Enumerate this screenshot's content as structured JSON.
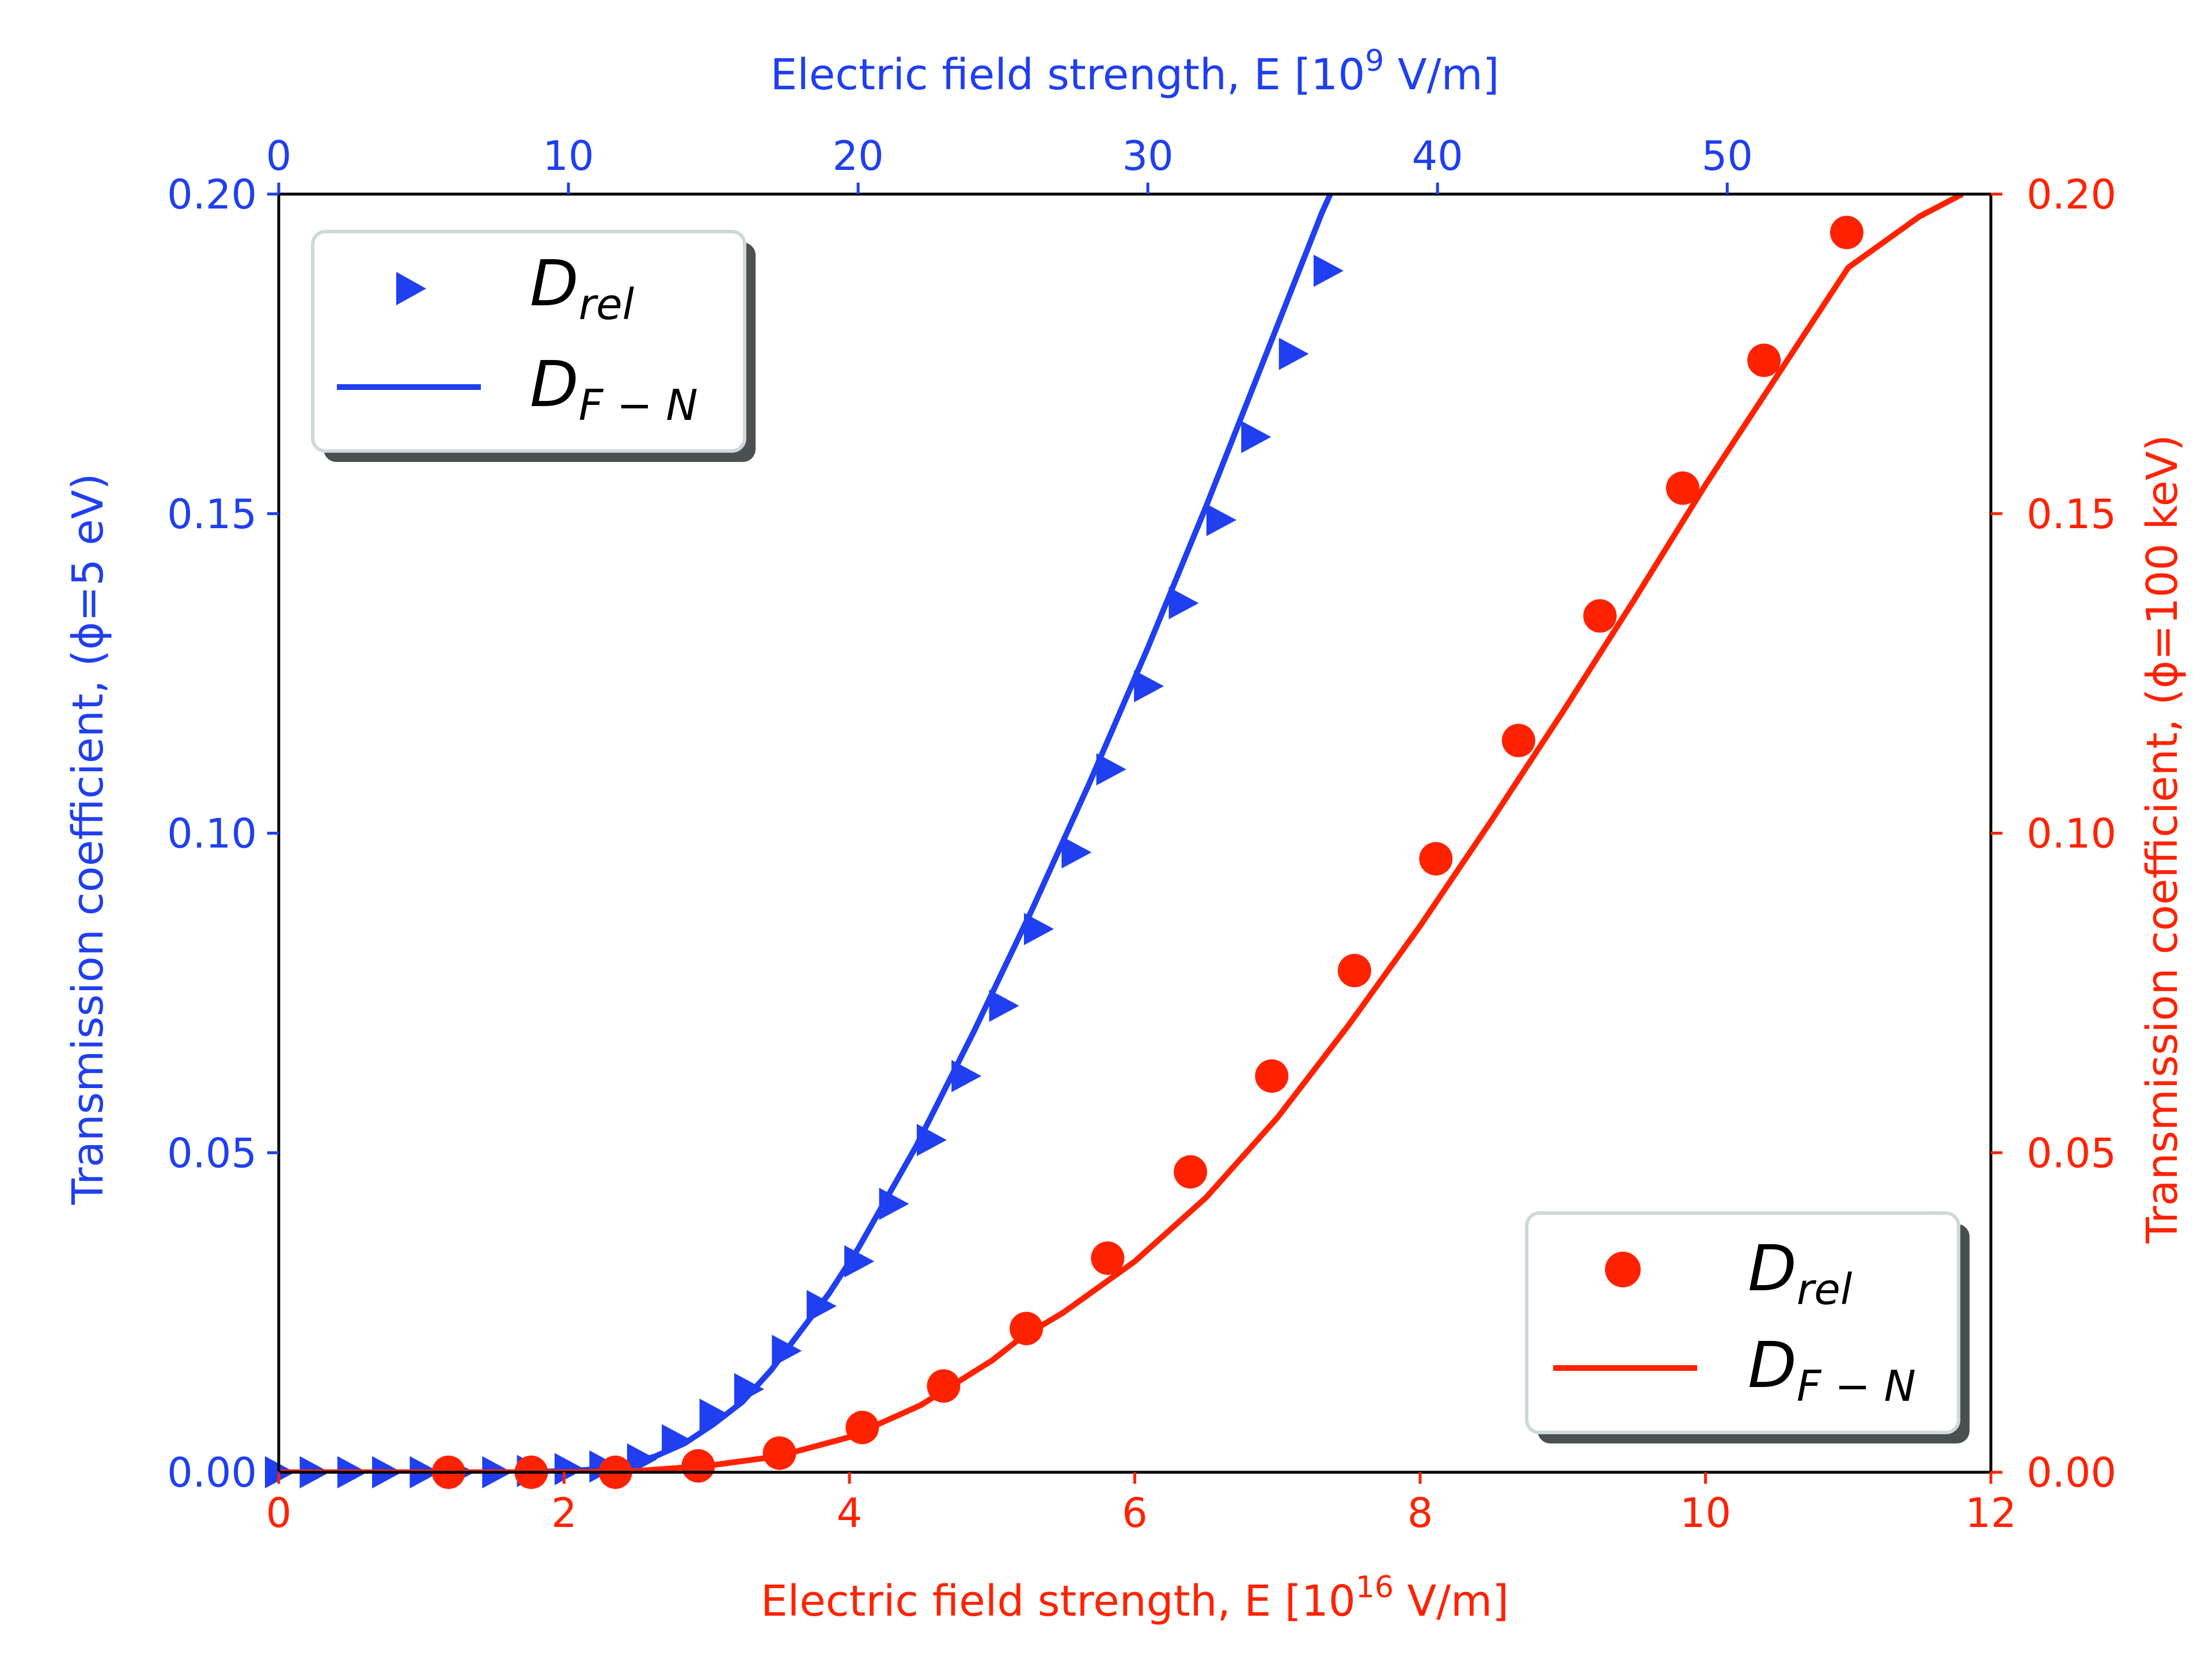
{
  "colors": {
    "blue": "#1f3ff0",
    "red": "#ff2200",
    "axis": "#000000",
    "legend_shadow": "#4a5050",
    "legend_border": "#cfd8d8"
  },
  "chart_data": {
    "type": "line",
    "x_bottom": {
      "label_prefix": "Electric field strength, E [10",
      "label_exp": "16",
      "label_suffix": " V/m]",
      "lim": [
        0,
        12
      ],
      "ticks": [
        "0",
        "2",
        "4",
        "6",
        "8",
        "10",
        "12"
      ]
    },
    "x_top": {
      "label_prefix": "Electric field strength, E [10",
      "label_exp": "9",
      "label_suffix": " V/m]",
      "lim": [
        0,
        59.1
      ],
      "ticks": [
        "0",
        "10",
        "20",
        "30",
        "40",
        "50"
      ]
    },
    "y_left": {
      "label": "Transmission coefficient, (ϕ=5 eV)",
      "lim": [
        0,
        0.2
      ],
      "ticks": [
        "0.00",
        "0.05",
        "0.10",
        "0.15",
        "0.20"
      ]
    },
    "y_right": {
      "label": "Transmission coefficient, (ϕ=100 keV)",
      "lim": [
        0,
        0.2
      ],
      "ticks": [
        "0.00",
        "0.05",
        "0.10",
        "0.15",
        "0.20"
      ]
    },
    "legend_left": {
      "position": "upper-left",
      "entries": [
        {
          "main": "D",
          "sub": "rel"
        },
        {
          "main": "D",
          "sub": "F − N"
        }
      ]
    },
    "legend_right": {
      "position": "lower-right",
      "entries": [
        {
          "main": "D",
          "sub": "rel"
        },
        {
          "main": "D",
          "sub": "F − N"
        }
      ]
    },
    "series": [
      {
        "axis": "top-left",
        "kind": "markers-triangle",
        "x": [
          0,
          1.2,
          2.5,
          3.7,
          5,
          6.2,
          7.5,
          8.7,
          10,
          11.2,
          12.5,
          13.7,
          15,
          16.2,
          17.5,
          18.7,
          20,
          21.2,
          22.5,
          23.7,
          25,
          26.2,
          27.5,
          28.7,
          30,
          31.2,
          32.5,
          33.7,
          35
        ],
        "y": [
          0,
          0,
          0,
          0,
          0,
          0,
          0,
          0.0002,
          0.0005,
          0.0009,
          0.002,
          0.005,
          0.009,
          0.013,
          0.019,
          0.026,
          0.033,
          0.042,
          0.052,
          0.062,
          0.073,
          0.085,
          0.097,
          0.11,
          0.123,
          0.136,
          0.149,
          0.162,
          0.175
        ]
      },
      {
        "axis": "top-left",
        "kind": "line",
        "x": [
          0,
          5,
          8,
          10,
          11,
          12,
          13,
          14,
          15,
          16,
          17,
          18,
          19,
          20,
          22,
          24,
          26,
          28,
          30,
          32,
          34,
          36,
          36.3
        ],
        "y": [
          0,
          0,
          0,
          0.0002,
          0.0005,
          0.0012,
          0.0025,
          0.0045,
          0.0075,
          0.011,
          0.016,
          0.022,
          0.028,
          0.035,
          0.051,
          0.069,
          0.088,
          0.108,
          0.129,
          0.151,
          0.174,
          0.197,
          0.2
        ]
      },
      {
        "axis": "top-left",
        "kind": "markers-triangle",
        "x": [
          36.2
        ],
        "y": [
          0.188
        ]
      },
      {
        "axis": "bottom-right",
        "kind": "markers-circle",
        "x": [
          1.19,
          1.77,
          2.36,
          2.94,
          3.51,
          4.09,
          4.66,
          5.24,
          5.81,
          6.39,
          6.96,
          7.54,
          8.11,
          8.69,
          9.26,
          9.84,
          10.41,
          10.99
        ],
        "y": [
          0,
          0,
          0,
          0.001,
          0.003,
          0.007,
          0.0135,
          0.0225,
          0.0335,
          0.047,
          0.062,
          0.0785,
          0.096,
          0.1145,
          0.134,
          0.154,
          0.174,
          0.194
        ]
      },
      {
        "axis": "bottom-right",
        "kind": "line",
        "x": [
          0,
          2,
          2.5,
          3,
          3.5,
          4,
          4.5,
          5,
          5.2,
          5.5,
          6,
          6.5,
          7,
          7.5,
          8,
          8.5,
          9,
          9.5,
          10,
          10.5,
          11,
          11.5,
          11.8
        ],
        "y": [
          0,
          0,
          0.0002,
          0.001,
          0.0025,
          0.0055,
          0.0105,
          0.0175,
          0.021,
          0.025,
          0.033,
          0.043,
          0.0555,
          0.07,
          0.0855,
          0.102,
          0.119,
          0.1365,
          0.1545,
          0.1715,
          0.1885,
          0.1965,
          0.2
        ]
      }
    ]
  }
}
